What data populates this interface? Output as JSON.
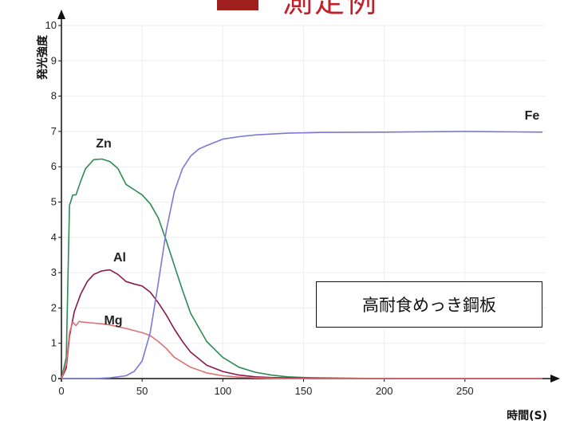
{
  "header": {
    "title": "測定例",
    "marker_color": "#a01f1f",
    "title_color": "#c0202a"
  },
  "annotation": "高耐食めっき鋼板",
  "chart_data": {
    "type": "line",
    "title": "測定例",
    "xlabel": "時間(S)",
    "ylabel": "発光強度",
    "xlim": [
      0,
      300
    ],
    "ylim": [
      0,
      10
    ],
    "xticks": [
      0,
      50,
      100,
      150,
      200,
      250
    ],
    "yticks": [
      0,
      1,
      2,
      3,
      4,
      5,
      6,
      7,
      8,
      9,
      10
    ],
    "grid": true,
    "series": [
      {
        "name": "Zn",
        "color": "#2e8b57",
        "x": [
          0,
          3,
          5,
          7,
          9,
          12,
          15,
          20,
          25,
          30,
          35,
          40,
          45,
          50,
          55,
          60,
          65,
          70,
          75,
          80,
          90,
          100,
          110,
          120,
          130,
          140,
          150,
          160,
          180,
          200,
          250,
          298
        ],
        "y": [
          0,
          0.6,
          4.9,
          5.2,
          5.2,
          5.6,
          5.95,
          6.2,
          6.22,
          6.15,
          5.95,
          5.5,
          5.35,
          5.2,
          4.95,
          4.55,
          3.9,
          3.2,
          2.5,
          1.85,
          1.05,
          0.6,
          0.32,
          0.18,
          0.1,
          0.05,
          0.03,
          0.02,
          0.01,
          0,
          0,
          0
        ]
      },
      {
        "name": "Al",
        "color": "#8b1a4a",
        "x": [
          0,
          3,
          5,
          8,
          12,
          16,
          20,
          25,
          30,
          35,
          40,
          45,
          50,
          55,
          60,
          65,
          70,
          75,
          80,
          90,
          100,
          110,
          120,
          130,
          140,
          150,
          160,
          180,
          250,
          298
        ],
        "y": [
          0,
          0.3,
          1.2,
          1.9,
          2.4,
          2.75,
          2.95,
          3.05,
          3.08,
          2.95,
          2.75,
          2.68,
          2.62,
          2.45,
          2.15,
          1.8,
          1.4,
          1.05,
          0.75,
          0.38,
          0.2,
          0.1,
          0.05,
          0.03,
          0.02,
          0.01,
          0,
          0,
          0,
          0
        ]
      },
      {
        "name": "Mg",
        "color": "#e07070",
        "x": [
          0,
          3,
          5,
          7,
          9,
          11,
          13,
          18,
          25,
          30,
          40,
          50,
          55,
          60,
          65,
          70,
          80,
          90,
          100,
          110,
          120,
          130,
          140,
          150,
          160,
          180,
          250,
          298
        ],
        "y": [
          0,
          0.4,
          1.3,
          1.6,
          1.5,
          1.62,
          1.6,
          1.58,
          1.55,
          1.52,
          1.42,
          1.3,
          1.22,
          1.05,
          0.85,
          0.6,
          0.32,
          0.16,
          0.08,
          0.04,
          0.02,
          0.01,
          0,
          0,
          0,
          0,
          0,
          0
        ]
      },
      {
        "name": "Fe",
        "color": "#7a7ad6",
        "x": [
          0,
          20,
          30,
          40,
          45,
          50,
          55,
          60,
          65,
          70,
          75,
          80,
          85,
          90,
          100,
          110,
          120,
          140,
          160,
          200,
          250,
          298
        ],
        "y": [
          0,
          0,
          0.02,
          0.08,
          0.2,
          0.5,
          1.3,
          2.7,
          4.2,
          5.3,
          5.95,
          6.3,
          6.5,
          6.6,
          6.78,
          6.85,
          6.9,
          6.95,
          6.97,
          6.98,
          7.0,
          6.98
        ]
      }
    ]
  }
}
